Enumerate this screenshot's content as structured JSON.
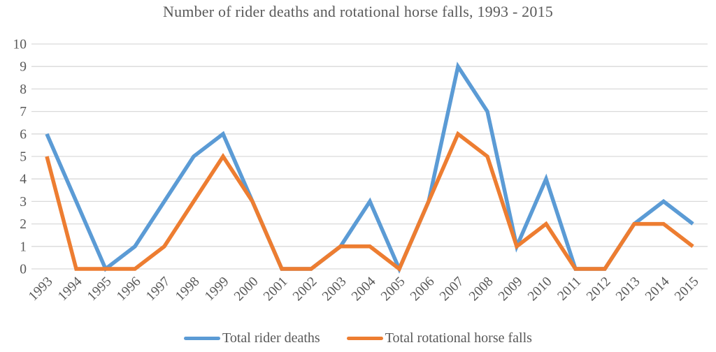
{
  "chart_data": {
    "type": "line",
    "title": "Number of rider deaths and rotational horse falls, 1993 - 2015",
    "categories": [
      "1993",
      "1994",
      "1995",
      "1996",
      "1997",
      "1998",
      "1999",
      "2000",
      "2001",
      "2002",
      "2003",
      "2004",
      "2005",
      "2006",
      "2007",
      "2008",
      "2009",
      "2010",
      "2011",
      "2012",
      "2013",
      "2014",
      "2015"
    ],
    "series": [
      {
        "name": "Total rider deaths",
        "color": "#5B9BD5",
        "values": [
          6,
          3,
          0,
          1,
          3,
          5,
          6,
          3,
          0,
          0,
          1,
          3,
          0,
          3,
          9,
          7,
          1,
          4,
          0,
          0,
          2,
          3,
          2
        ]
      },
      {
        "name": "Total rotational horse falls",
        "color": "#ED7D31",
        "values": [
          5,
          0,
          0,
          0,
          1,
          3,
          5,
          3,
          0,
          0,
          1,
          1,
          0,
          3,
          6,
          5,
          1,
          2,
          0,
          0,
          2,
          2,
          1
        ]
      }
    ],
    "yticks": [
      0,
      1,
      2,
      3,
      4,
      5,
      6,
      7,
      8,
      9,
      10
    ],
    "ylim": [
      0,
      10
    ],
    "xlabel": "",
    "ylabel": "",
    "grid": true,
    "legend_position": "bottom",
    "axis_text_color": "#595959",
    "gridline_color": "#D9D9D9"
  }
}
